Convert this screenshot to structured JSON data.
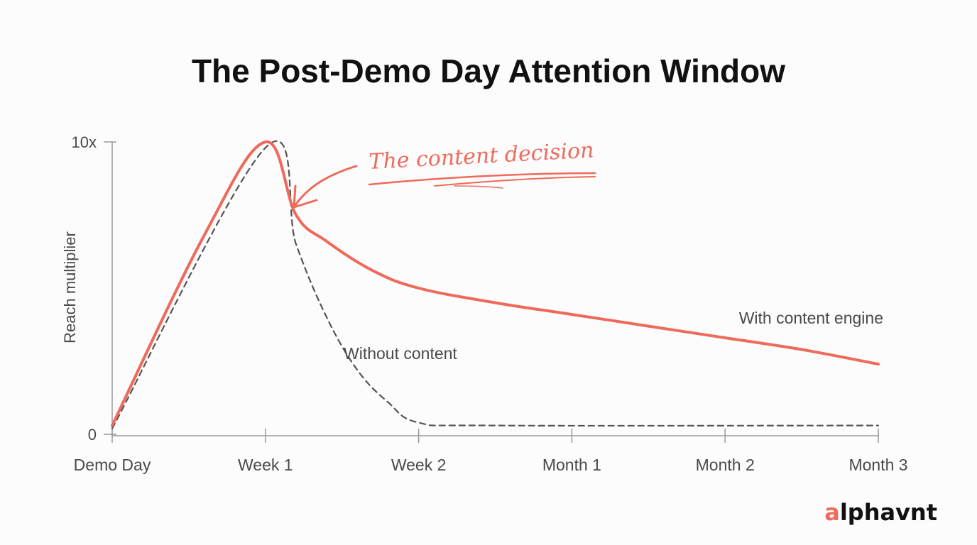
{
  "colors": {
    "accent": "#ee6a5a",
    "dashed": "#555555",
    "axis": "#999999",
    "text": "#4a4a4a",
    "title": "#111111",
    "brand": "#111111"
  },
  "brand": {
    "mark": "a",
    "rest": "lphavnt"
  },
  "annotation": {
    "text": "The content decision"
  },
  "chart_data": {
    "type": "line",
    "title": "The Post-Demo Day Attention Window",
    "xlabel": "",
    "ylabel": "Reach multiplier",
    "categories": [
      "Demo Day",
      "Week 1",
      "Week 2",
      "Month 1",
      "Month 2",
      "Month 3"
    ],
    "ylim": [
      0,
      10
    ],
    "ytick_labels": [
      {
        "value": 0,
        "label": "0"
      },
      {
        "value": 10,
        "label": "10x"
      }
    ],
    "grid": false,
    "series": [
      {
        "name": "With content engine",
        "style": "solid",
        "color": "#ee6a5a",
        "points": [
          [
            0,
            0.3
          ],
          [
            0.6,
            6.8
          ],
          [
            1.0,
            10.0
          ],
          [
            1.2,
            7.5
          ],
          [
            1.4,
            6.6
          ],
          [
            1.7,
            5.6
          ],
          [
            2.0,
            5.0
          ],
          [
            2.5,
            4.5
          ],
          [
            3.0,
            4.1
          ],
          [
            3.5,
            3.7
          ],
          [
            4.0,
            3.3
          ],
          [
            4.5,
            2.9
          ],
          [
            5.0,
            2.4
          ]
        ]
      },
      {
        "name": "Without content",
        "style": "dashed",
        "color": "#555555",
        "points": [
          [
            0,
            0.2
          ],
          [
            1.0,
            9.8
          ],
          [
            1.2,
            6.5
          ],
          [
            1.4,
            4.0
          ],
          [
            1.6,
            2.2
          ],
          [
            1.8,
            1.1
          ],
          [
            2.0,
            0.4
          ],
          [
            2.5,
            0.3
          ],
          [
            5.0,
            0.3
          ]
        ]
      }
    ]
  }
}
